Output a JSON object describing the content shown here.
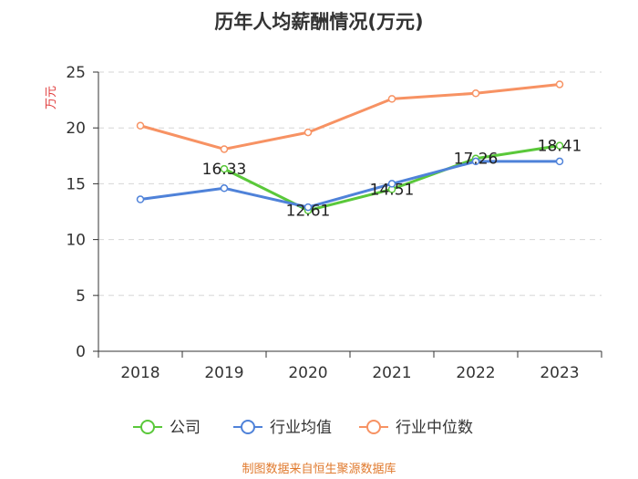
{
  "chart_data": {
    "type": "line",
    "title": "历年人均薪酬情况(万元)",
    "ylabel": "万元",
    "xlabel": "",
    "ylim": [
      0,
      25
    ],
    "yticks": [
      0,
      5,
      10,
      15,
      20,
      25
    ],
    "categories": [
      "2018",
      "2019",
      "2020",
      "2021",
      "2022",
      "2023"
    ],
    "series": [
      {
        "name": "公司",
        "color": "#5ac83a",
        "values": [
          null,
          16.33,
          12.61,
          14.51,
          17.26,
          18.41
        ],
        "labels": [
          "",
          "16.33",
          "12.61",
          "14.51",
          "17.26",
          "18.41"
        ]
      },
      {
        "name": "行业均值",
        "color": "#4f82d9",
        "values": [
          13.6,
          14.6,
          12.9,
          15.0,
          17.0,
          17.0
        ]
      },
      {
        "name": "行业中位数",
        "color": "#f79263",
        "values": [
          20.2,
          18.1,
          19.6,
          22.6,
          23.1,
          23.9
        ]
      }
    ],
    "grid": true,
    "legend_position": "bottom",
    "source": "制图数据来自恒生聚源数据库"
  }
}
